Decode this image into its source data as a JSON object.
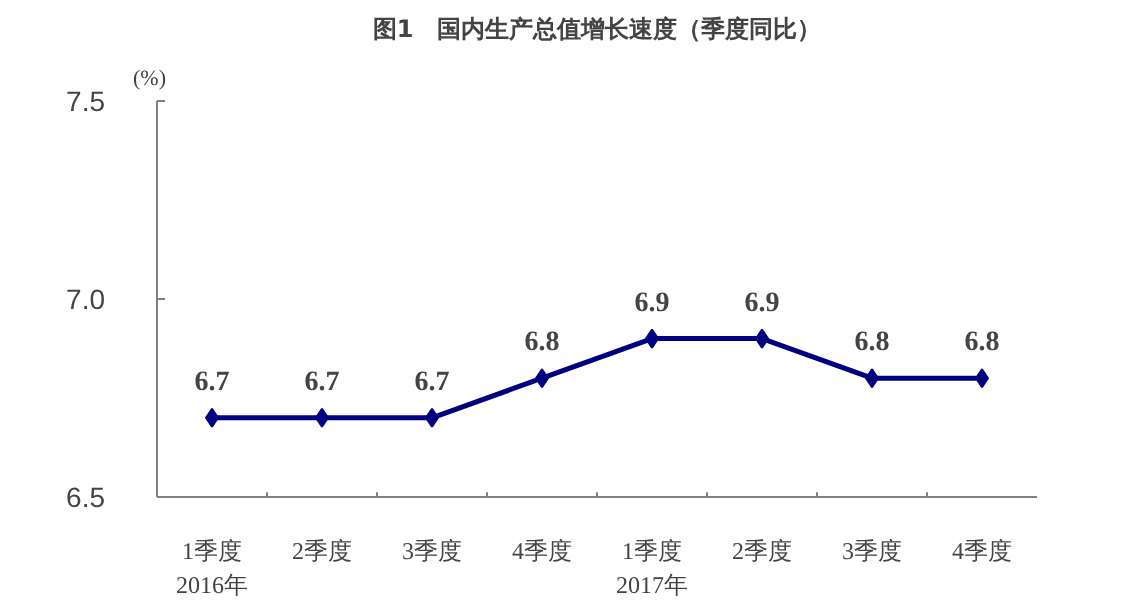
{
  "chart_data": {
    "type": "line",
    "title": "图1　国内生产总值增长速度（季度同比）",
    "ylabel": "(%)",
    "categories": [
      "1季度\n2016年",
      "2季度",
      "3季度",
      "4季度",
      "1季度\n2017年",
      "2季度",
      "3季度",
      "4季度"
    ],
    "series": [
      {
        "color": "#000080",
        "values": [
          6.7,
          6.7,
          6.7,
          6.8,
          6.9,
          6.9,
          6.8,
          6.8
        ]
      }
    ],
    "ylim": [
      6.5,
      7.5
    ],
    "yticks": [
      6.5,
      {
        "value": 7.0,
        "label": "7.0"
      },
      7.5
    ],
    "marker": "diamond",
    "line_style": "solid",
    "data_labels": true,
    "grid": false
  }
}
